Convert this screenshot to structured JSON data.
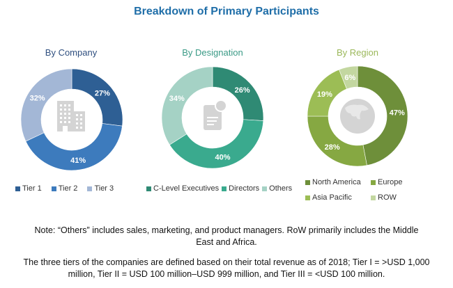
{
  "title": "Breakdown of Primary Participants",
  "chart_data": [
    {
      "type": "pie",
      "variant": "donut",
      "title": "By Company",
      "title_color": "#2f4f7f",
      "center_icon": "building-icon",
      "categories": [
        "Tier 1",
        "Tier 2",
        "Tier 3"
      ],
      "values": [
        27,
        41,
        32
      ],
      "labels": [
        "27%",
        "41%",
        "32%"
      ],
      "colors": [
        "#2e5f94",
        "#3d7bbd",
        "#a3b7d6"
      ],
      "legend_position": "bottom"
    },
    {
      "type": "pie",
      "variant": "donut",
      "title": "By Designation",
      "title_color": "#3a9a86",
      "center_icon": "document-icon",
      "categories": [
        "C-Level Executives",
        "Directors",
        "Others"
      ],
      "values": [
        26,
        40,
        34
      ],
      "labels": [
        "26%",
        "40%",
        "34%"
      ],
      "colors": [
        "#2f8a74",
        "#3aaa8e",
        "#a5d2c5"
      ],
      "legend_position": "bottom"
    },
    {
      "type": "pie",
      "variant": "donut",
      "title": "By Region",
      "title_color": "#9bb85a",
      "center_icon": "globe-icon",
      "categories": [
        "North America",
        "Europe",
        "Asia Pacific",
        "ROW"
      ],
      "values": [
        47,
        28,
        19,
        6
      ],
      "labels": [
        "47%",
        "28%",
        "19%",
        "6%"
      ],
      "colors": [
        "#6e8f3a",
        "#86a842",
        "#9cbd55",
        "#c3d7a0"
      ],
      "legend_position": "bottom"
    }
  ],
  "notes": {
    "line1": "Note: “Others” includes sales, marketing, and product managers. RoW primarily includes the Middle",
    "line2": "East and Africa.",
    "line3": "The three tiers of the companies are defined based on their total revenue as of 2018; Tier I = >USD 1,000",
    "line4": "million, Tier II = USD 100 million–USD 999 million, and Tier III = <USD 100 million."
  }
}
